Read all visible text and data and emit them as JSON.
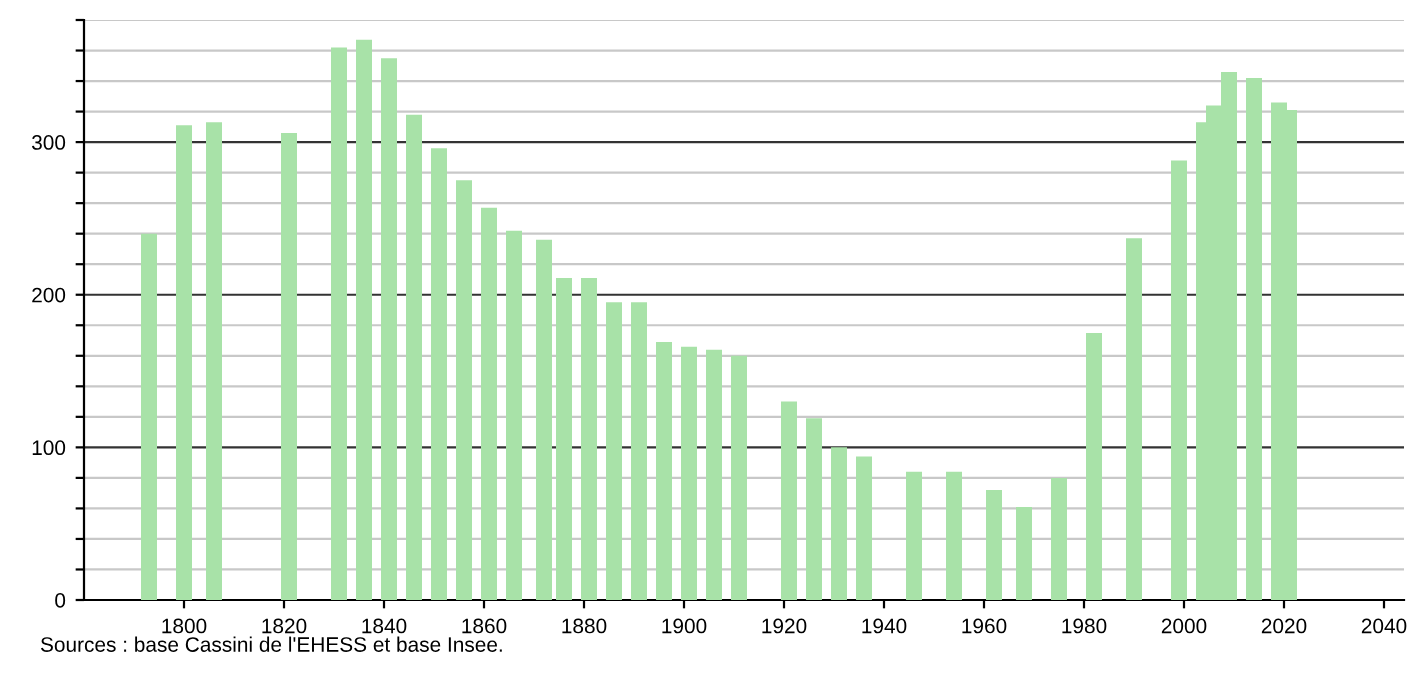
{
  "chart_data": {
    "type": "bar",
    "x": [
      1793,
      1800,
      1806,
      1821,
      1831,
      1836,
      1841,
      1846,
      1851,
      1856,
      1861,
      1866,
      1872,
      1876,
      1881,
      1886,
      1891,
      1896,
      1901,
      1906,
      1911,
      1921,
      1926,
      1931,
      1936,
      1946,
      1954,
      1962,
      1968,
      1975,
      1982,
      1990,
      1999,
      2004,
      2006,
      2009,
      2014,
      2019,
      2021
    ],
    "values": [
      240,
      311,
      313,
      306,
      362,
      367,
      355,
      318,
      296,
      275,
      257,
      242,
      236,
      211,
      211,
      195,
      195,
      169,
      166,
      164,
      160,
      130,
      119,
      100,
      94,
      84,
      84,
      72,
      61,
      80,
      175,
      237,
      288,
      313,
      324,
      346,
      342,
      326,
      321
    ],
    "color": "#a8e2a8",
    "xlim": [
      1780,
      2044
    ],
    "xticks": [
      1800,
      1820,
      1840,
      1860,
      1880,
      1900,
      1920,
      1940,
      1960,
      1980,
      2000,
      2020,
      2040
    ],
    "ylim": [
      0,
      380
    ],
    "yticks": [
      0,
      {
        "value": 20,
        "label": null
      },
      {
        "value": 40,
        "label": null
      },
      {
        "value": 60,
        "label": null
      },
      {
        "value": 80,
        "label": null
      },
      100,
      {
        "value": 120,
        "label": null
      },
      {
        "value": 140,
        "label": null
      },
      {
        "value": 160,
        "label": null
      },
      {
        "value": 180,
        "label": null
      },
      200,
      {
        "value": 220,
        "label": null
      },
      {
        "value": 240,
        "label": null
      },
      {
        "value": 260,
        "label": null
      },
      {
        "value": 280,
        "label": null
      },
      300,
      {
        "value": 320,
        "label": null
      },
      {
        "value": 340,
        "label": null
      },
      {
        "value": 360,
        "label": null
      },
      {
        "value": 380,
        "label": null
      }
    ],
    "grid": "y",
    "annotations": [
      "Sources : base Cassini de l'EHESS et base Insee."
    ]
  }
}
